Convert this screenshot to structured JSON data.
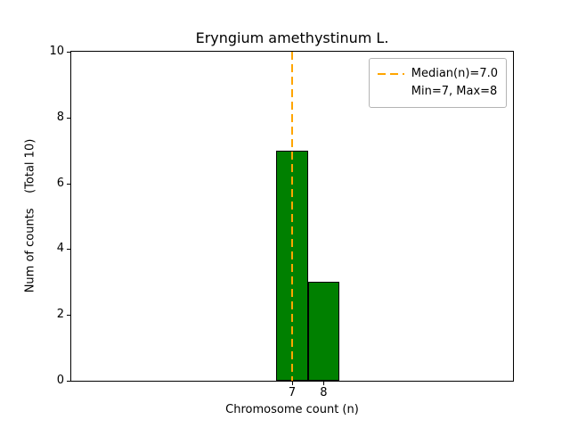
{
  "chart_data": {
    "type": "bar",
    "title": "Eryngium amethystinum L.",
    "xlabel": "Chromosome count (n)",
    "ylabel": "Num of counts    (Total 10)",
    "categories": [
      7,
      8
    ],
    "values": [
      7,
      3
    ],
    "bar_width": 1,
    "bar_color": "#008000",
    "bar_edge_color": "#000000",
    "xlim": [
      0,
      14
    ],
    "ylim": [
      0,
      10
    ],
    "x_ticks": [
      "7",
      "8"
    ],
    "x_tick_values": [
      7,
      8
    ],
    "y_ticks": [
      "0",
      "2",
      "4",
      "6",
      "8",
      "10"
    ],
    "y_tick_values": [
      0,
      2,
      4,
      6,
      8,
      10
    ],
    "grid": false,
    "median_line": {
      "x": 7.0,
      "color": "#ffa500",
      "style": "dashed",
      "label": "Median(n)=7.0"
    },
    "legend": {
      "position": "upper right",
      "entries": [
        {
          "swatch": "dashed-line",
          "label": "Median(n)=7.0"
        },
        {
          "swatch": "none",
          "label": "Min=7, Max=8"
        }
      ]
    }
  }
}
